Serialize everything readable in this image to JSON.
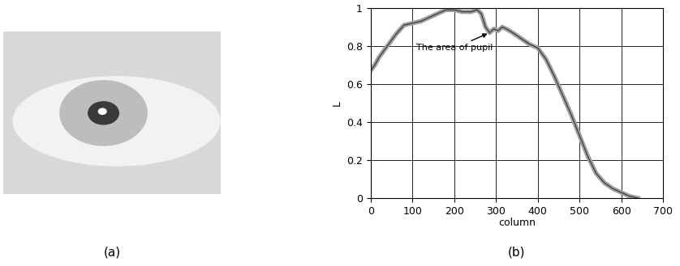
{
  "image": {
    "label": "(a)"
  },
  "chart_data": {
    "type": "line",
    "panel_label": "(b)",
    "x_label": "column",
    "y_label": "L",
    "x": [
      0,
      10,
      20,
      40,
      60,
      80,
      100,
      120,
      140,
      160,
      180,
      200,
      220,
      240,
      255,
      265,
      275,
      285,
      295,
      305,
      315,
      325,
      340,
      360,
      380,
      400,
      420,
      440,
      460,
      480,
      500,
      520,
      540,
      560,
      580,
      600,
      620,
      640
    ],
    "values": [
      0.67,
      0.7,
      0.74,
      0.8,
      0.86,
      0.91,
      0.92,
      0.93,
      0.95,
      0.97,
      0.99,
      0.99,
      0.98,
      0.98,
      0.99,
      0.97,
      0.9,
      0.87,
      0.89,
      0.88,
      0.9,
      0.89,
      0.87,
      0.84,
      0.81,
      0.79,
      0.73,
      0.64,
      0.54,
      0.44,
      0.33,
      0.22,
      0.13,
      0.08,
      0.05,
      0.03,
      0.01,
      0.0
    ],
    "color": "#a0a0a0",
    "xlim": [
      0,
      700
    ],
    "xticks": [
      0,
      100,
      200,
      300,
      400,
      500,
      600,
      700
    ],
    "ylim": [
      0,
      1
    ],
    "yticks": [
      0,
      0.2,
      0.4,
      0.6,
      0.8,
      1
    ],
    "grid": true,
    "annotations": [
      {
        "text": "The area of pupil",
        "x": 285,
        "y": 0.87
      }
    ]
  }
}
